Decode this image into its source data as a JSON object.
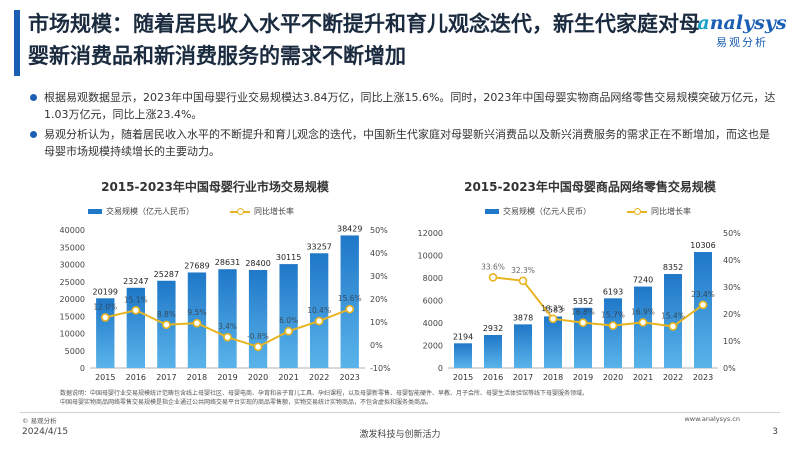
{
  "header": {
    "title": "市场规模：随着居民收入水平不断提升和育儿观念迭代，新生代家庭对母婴新消费品和新消费服务的需求不断增加",
    "logo_text": "nalysys",
    "logo_letter": "a",
    "logo_sub": "易观分析"
  },
  "bullets": [
    "根据易观数据显示，2023年中国母婴行业交易规模达3.84万亿，同比上涨15.6%。同时，2023年中国母婴实物商品网络零售交易规模突破万亿元，达1.03万亿元，同比上涨23.4%。",
    "易观分析认为，随着居民收入水平的不断提升和育儿观念的迭代，中国新生代家庭对母婴新兴消费品以及新兴消费服务的需求正在不断增加，而这也是母婴市场规模持续增长的主要动力。"
  ],
  "chart_data": [
    {
      "type": "bar",
      "title": "2015-2023年中国母婴行业市场交易规模",
      "categories": [
        "2015",
        "2016",
        "2017",
        "2018",
        "2019",
        "2020",
        "2021",
        "2022",
        "2023"
      ],
      "series": [
        {
          "name": "交易规模（亿元人民币）",
          "axis": "left",
          "kind": "bar",
          "values": [
            20199,
            23247,
            25287,
            27689,
            28631,
            28400,
            30115,
            33257,
            38429
          ]
        },
        {
          "name": "同比增长率",
          "axis": "right",
          "kind": "line",
          "values": [
            12.0,
            15.1,
            8.8,
            9.5,
            3.4,
            -0.8,
            6.0,
            10.4,
            15.6
          ],
          "labels": [
            "12.0%",
            "15.1%",
            "8.8%",
            "9.5%",
            "3.4%",
            "-0.8%",
            "6.0%",
            "10.4%",
            "15.6%"
          ]
        }
      ],
      "ylim": [
        0,
        40000
      ],
      "yticks": [
        0,
        5000,
        10000,
        15000,
        20000,
        25000,
        30000,
        35000,
        40000
      ],
      "y2lim": [
        -10,
        50
      ],
      "y2ticks": [
        "-10%",
        "0%",
        "10%",
        "20%",
        "30%",
        "40%",
        "50%"
      ],
      "legend": "top"
    },
    {
      "type": "bar",
      "title": "2015-2023年中国母婴商品网络零售交易规模",
      "categories": [
        "2015",
        "2016",
        "2017",
        "2018",
        "2019",
        "2020",
        "2021",
        "2022",
        "2023"
      ],
      "series": [
        {
          "name": "交易规模（亿元人民币）",
          "axis": "left",
          "kind": "bar",
          "values": [
            2194,
            2932,
            3878,
            4583,
            5352,
            6193,
            7240,
            8352,
            10306
          ]
        },
        {
          "name": "同比增长率",
          "axis": "right",
          "kind": "line",
          "values": [
            null,
            33.6,
            32.3,
            18.2,
            16.8,
            15.7,
            16.9,
            15.4,
            23.4
          ],
          "labels": [
            "",
            "33.6%",
            "32.3%",
            "18.2%",
            "16.8%",
            "15.7%",
            "16.9%",
            "15.4%",
            "23.4%"
          ]
        }
      ],
      "ylim": [
        0,
        12000
      ],
      "yticks": [
        0,
        2000,
        4000,
        6000,
        8000,
        10000,
        12000
      ],
      "y2lim": [
        0,
        50
      ],
      "y2ticks": [
        "0%",
        "10%",
        "20%",
        "30%",
        "40%",
        "50%"
      ],
      "legend": "top"
    }
  ],
  "notes": [
    "数据说明：中国母婴行业交易规模统计范畴包含线上母婴社区、母婴电商、孕育和亲子育儿工具、孕妇课程，以及母婴新零售、母婴智能硬件、早教、月子会所、母婴生活体验馆等线下母婴服务领域。",
    "中国母婴实物商品网络零售交易规模是指企业通过公共网络交易平台实现的商品零售额，实物交易统计实物商品，不包含虚拟和服务类商品。"
  ],
  "footer": {
    "source": "© 易观分析",
    "website": "www.analysys.cn",
    "date": "2024/4/15",
    "slogan": "激发科技与创新活力",
    "page": "3"
  },
  "colors": {
    "bar_dark": "#1f77c8",
    "bar_light": "#5ab4ea",
    "line": "#e8b420",
    "accent": "#1a5fb4"
  }
}
